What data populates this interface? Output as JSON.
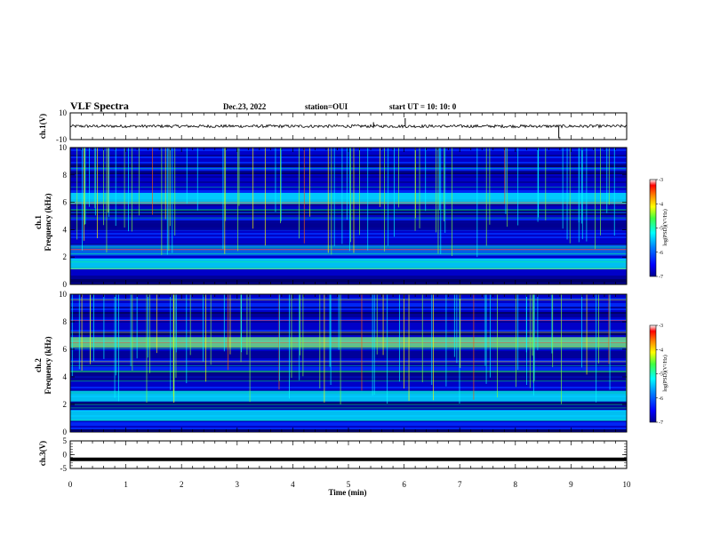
{
  "header": {
    "title": "VLF Spectra",
    "date": "Dec.23, 2022",
    "station": "station=OUI",
    "start": "start  UT =   10: 10: 0"
  },
  "chart_data": [
    {
      "type": "line",
      "ylabel": "ch.1(V)",
      "ylim": [
        -10,
        10
      ],
      "yticks": [
        "10",
        "-10"
      ],
      "xlim": [
        0,
        10
      ],
      "level": 0,
      "spikes": [
        {
          "x": 5.45,
          "y": 3
        },
        {
          "x": 6.02,
          "y": 6
        },
        {
          "x": 8.78,
          "y": -9
        }
      ]
    },
    {
      "type": "heatmap",
      "ylabel": "ch.1\nFrequency (kHz)",
      "ylabel_line1": "ch.1",
      "ylabel_line2": "Frequency (kHz)",
      "ylim": [
        0,
        10
      ],
      "yticks": [
        "0",
        "2",
        "4",
        "6",
        "8",
        "10"
      ],
      "xlim": [
        0,
        10
      ],
      "colorbar": {
        "label": "log(PSD)(V²/Hz)",
        "ticks": [
          "-3",
          "-4",
          "-5",
          "-6",
          "-7"
        ],
        "range": [
          -7,
          -3
        ]
      },
      "bands_khz": [
        {
          "f": 6.3,
          "level": -5.3
        },
        {
          "f": 4.2,
          "level": -6.9
        },
        {
          "f": 2.5,
          "level": -5.6
        },
        {
          "f": 1.5,
          "level": -5.4
        }
      ]
    },
    {
      "type": "heatmap",
      "ylabel": "ch.2\nFrequency (kHz)",
      "ylabel_line1": "ch.2",
      "ylabel_line2": "Frequency (kHz)",
      "ylim": [
        0,
        10
      ],
      "yticks": [
        "0",
        "2",
        "4",
        "6",
        "8",
        "10"
      ],
      "xlim": [
        0,
        10
      ],
      "colorbar": {
        "label": "log(PSD)(V²/Hz)",
        "ticks": [
          "-3",
          "-4",
          "-5",
          "-6",
          "-7"
        ],
        "range": [
          -7,
          -3
        ]
      },
      "bands_khz": [
        {
          "f": 6.5,
          "level": -4.8
        },
        {
          "f": 4.2,
          "level": -6.9
        },
        {
          "f": 2.6,
          "level": -5.4
        },
        {
          "f": 1.2,
          "level": -5.5
        }
      ]
    },
    {
      "type": "line",
      "ylabel": "ch.3(V)",
      "ylim": [
        -5,
        5
      ],
      "yticks": [
        "5",
        "0",
        "-5"
      ],
      "xlim": [
        0,
        10
      ],
      "level": -1.7
    }
  ],
  "xaxis": {
    "label": "Time (min)",
    "ticks": [
      "0",
      "1",
      "2",
      "3",
      "4",
      "5",
      "6",
      "7",
      "8",
      "9",
      "10"
    ]
  },
  "colors": {
    "cmap": [
      "#00008f",
      "#0000ff",
      "#0080ff",
      "#00ffff",
      "#80ff80",
      "#ffff00",
      "#ff8000",
      "#ff0000",
      "#ffffff"
    ]
  }
}
